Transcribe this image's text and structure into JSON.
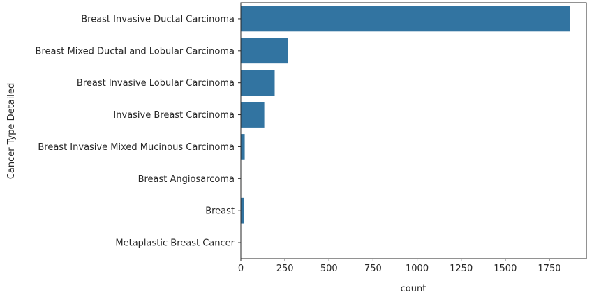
{
  "chart_data": {
    "type": "bar",
    "orientation": "horizontal",
    "xlabel": "count",
    "ylabel": "Cancer Type Detailed",
    "xlim": [
      0,
      1960
    ],
    "xticks": [
      0,
      250,
      500,
      750,
      1000,
      1250,
      1500,
      1750
    ],
    "categories": [
      "Breast Invasive Ductal Carcinoma",
      "Breast Mixed Ductal and Lobular Carcinoma",
      "Breast Invasive Lobular Carcinoma",
      "Invasive Breast Carcinoma",
      "Breast Invasive Mixed Mucinous Carcinoma",
      "Breast Angiosarcoma",
      "Breast",
      "Metaplastic Breast Cancer"
    ],
    "values": [
      1865,
      269,
      192,
      133,
      22,
      2,
      17,
      1
    ],
    "bar_color": "#3274a1",
    "grid": false
  }
}
